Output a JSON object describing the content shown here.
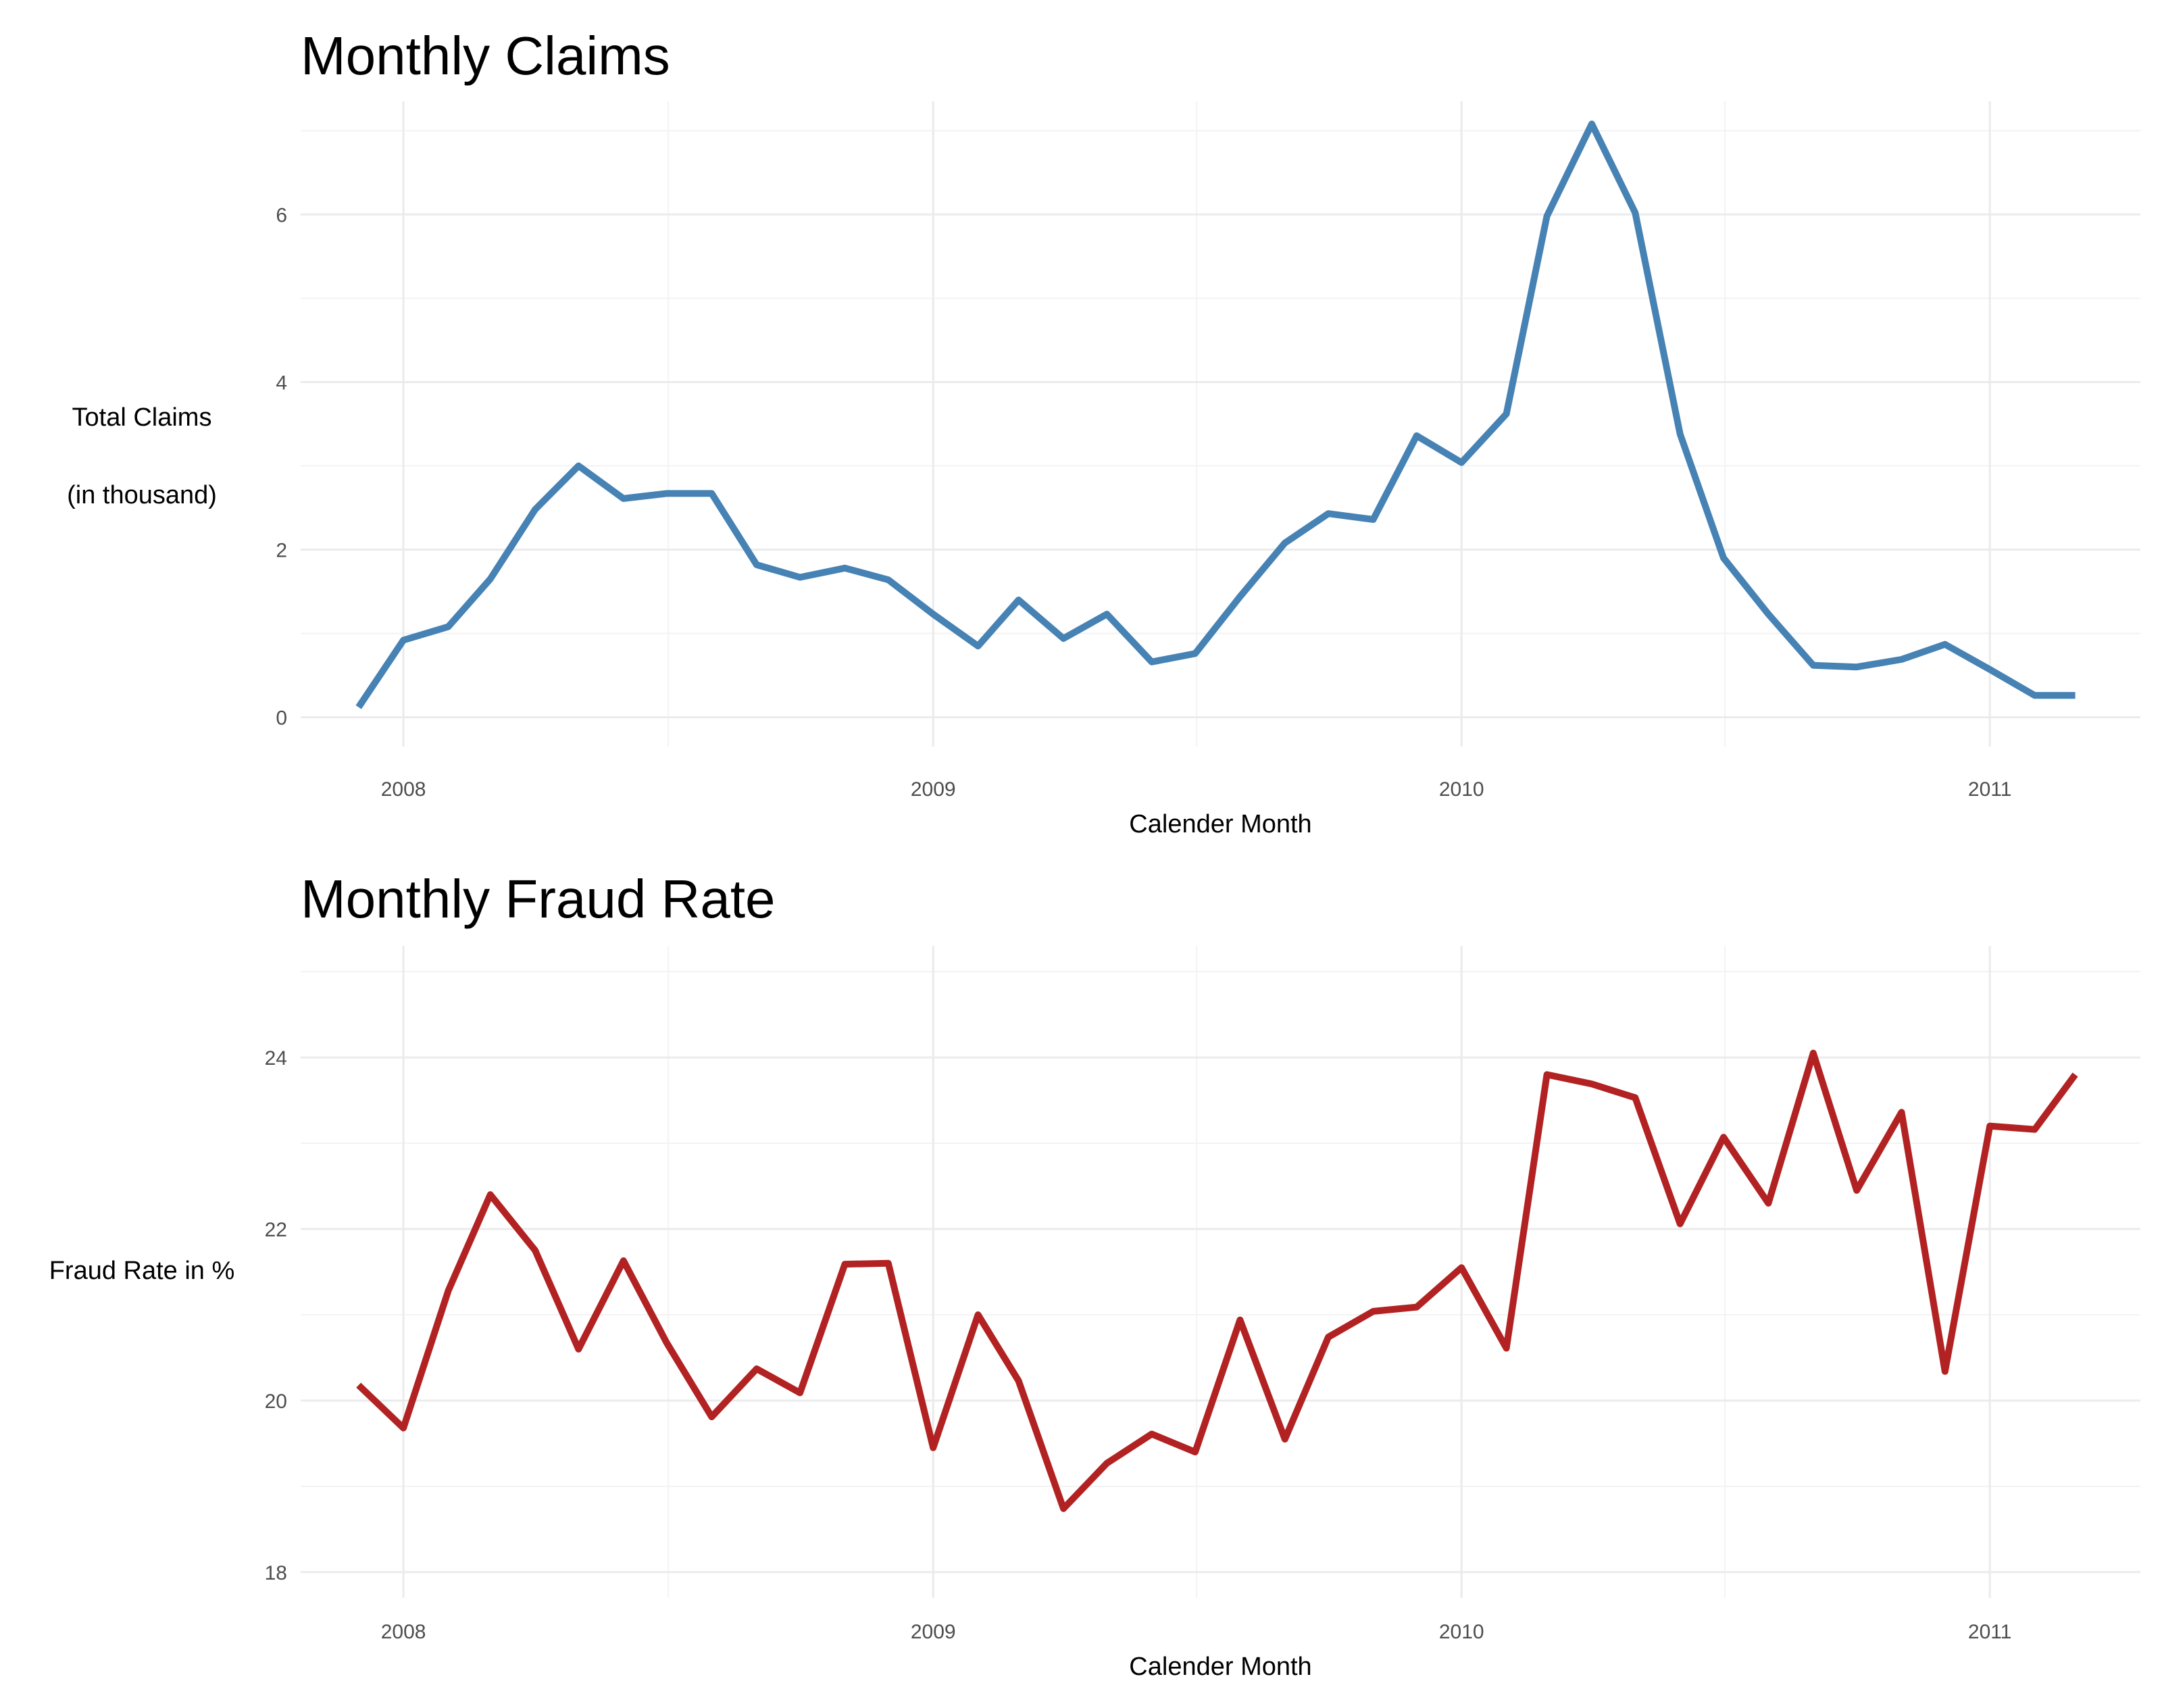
{
  "chart_data": [
    {
      "type": "line",
      "title": "Monthly Claims",
      "xlabel": "Calender Month",
      "ylabel_lines": [
        "Total Claims",
        "(in thousand)"
      ],
      "color": "#4682b4",
      "xlim": [
        "2007-10-22",
        "2011-04-15"
      ],
      "ylim": [
        -0.35,
        7.35
      ],
      "yticks": [
        0,
        2,
        4,
        6
      ],
      "xticks": [
        "2008-01-01",
        "2009-01-01",
        "2010-01-01",
        "2011-01-01"
      ],
      "xtick_labels": [
        "2008",
        "2009",
        "2010",
        "2011"
      ],
      "grid": true,
      "x": [
        "2007-12-01",
        "2008-01-01",
        "2008-02-01",
        "2008-03-01",
        "2008-04-01",
        "2008-05-01",
        "2008-06-01",
        "2008-07-01",
        "2008-08-01",
        "2008-09-01",
        "2008-10-01",
        "2008-11-01",
        "2008-12-01",
        "2009-01-01",
        "2009-02-01",
        "2009-03-01",
        "2009-04-01",
        "2009-05-01",
        "2009-06-01",
        "2009-07-01",
        "2009-08-01",
        "2009-09-01",
        "2009-10-01",
        "2009-11-01",
        "2009-12-01",
        "2010-01-01",
        "2010-02-01",
        "2010-03-01",
        "2010-04-01",
        "2010-05-01",
        "2010-06-01",
        "2010-07-01",
        "2010-08-01",
        "2010-09-01",
        "2010-10-01",
        "2010-11-01",
        "2010-12-01",
        "2011-01-01",
        "2011-02-01",
        "2011-03-01"
      ],
      "values": [
        0.12,
        0.92,
        1.08,
        1.65,
        2.48,
        3.0,
        2.61,
        2.67,
        2.67,
        1.82,
        1.67,
        1.78,
        1.64,
        1.23,
        0.85,
        1.4,
        0.94,
        1.23,
        0.66,
        0.76,
        1.44,
        2.08,
        2.43,
        2.36,
        3.36,
        3.04,
        3.62,
        5.98,
        7.08,
        6.02,
        3.38,
        1.9,
        1.23,
        0.62,
        0.6,
        0.69,
        0.87,
        0.57,
        0.26,
        0.26
      ]
    },
    {
      "type": "line",
      "title": "Monthly Fraud Rate",
      "xlabel": "Calender Month",
      "ylabel_lines": [
        "Fraud Rate in %"
      ],
      "color": "#b22222",
      "xlim": [
        "2007-10-22",
        "2011-04-15"
      ],
      "ylim": [
        17.7,
        25.3
      ],
      "yticks": [
        18,
        20,
        22,
        24
      ],
      "xticks": [
        "2008-01-01",
        "2009-01-01",
        "2010-01-01",
        "2011-01-01"
      ],
      "xtick_labels": [
        "2008",
        "2009",
        "2010",
        "2011"
      ],
      "grid": true,
      "x": [
        "2007-12-01",
        "2008-01-01",
        "2008-02-01",
        "2008-03-01",
        "2008-04-01",
        "2008-05-01",
        "2008-06-01",
        "2008-07-01",
        "2008-08-01",
        "2008-09-01",
        "2008-10-01",
        "2008-11-01",
        "2008-12-01",
        "2009-01-01",
        "2009-02-01",
        "2009-03-01",
        "2009-04-01",
        "2009-05-01",
        "2009-06-01",
        "2009-07-01",
        "2009-08-01",
        "2009-09-01",
        "2009-10-01",
        "2009-11-01",
        "2009-12-01",
        "2010-01-01",
        "2010-02-01",
        "2010-03-01",
        "2010-04-01",
        "2010-05-01",
        "2010-06-01",
        "2010-07-01",
        "2010-08-01",
        "2010-09-01",
        "2010-10-01",
        "2010-11-01",
        "2010-12-01",
        "2011-01-01",
        "2011-02-01",
        "2011-03-01"
      ],
      "values": [
        20.18,
        19.68,
        21.28,
        22.4,
        21.75,
        20.6,
        21.63,
        20.67,
        19.81,
        20.37,
        20.09,
        21.59,
        21.6,
        19.45,
        21.0,
        20.23,
        18.74,
        19.27,
        19.61,
        19.4,
        20.94,
        19.55,
        20.74,
        21.04,
        21.09,
        21.55,
        20.61,
        23.8,
        23.69,
        23.53,
        22.06,
        23.07,
        22.3,
        24.05,
        22.45,
        23.36,
        20.34,
        23.2,
        23.16,
        23.8
      ]
    }
  ]
}
